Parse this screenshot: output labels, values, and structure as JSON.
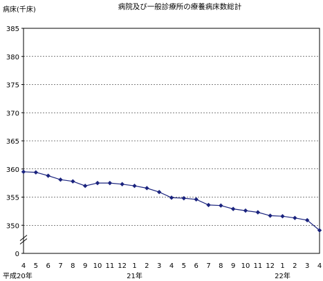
{
  "chart_data": {
    "type": "line",
    "title": "病院及び一般診療所の療養病床数総計",
    "ylabel": "病床(千床)",
    "xlabel": "",
    "ylim": [
      345,
      385
    ],
    "yticks": [
      "0",
      "350",
      "355",
      "360",
      "365",
      "370",
      "375",
      "380",
      "385"
    ],
    "axis_break": "y-axis between 0 and 350",
    "grid": true,
    "legend": "none",
    "categories": [
      "4",
      "5",
      "6",
      "7",
      "8",
      "9",
      "10",
      "11",
      "12",
      "1",
      "2",
      "3",
      "4",
      "5",
      "6",
      "7",
      "8",
      "9",
      "10",
      "11",
      "12",
      "1",
      "2",
      "3",
      "4"
    ],
    "year_labels": [
      {
        "label": "平成20年",
        "category_index": 0
      },
      {
        "label": "21年",
        "category_index": 9
      },
      {
        "label": "22年",
        "category_index": 21
      }
    ],
    "series": [
      {
        "values": [
          359.5,
          359.4,
          358.8,
          358.1,
          357.8,
          357.0,
          357.5,
          357.5,
          357.3,
          357.0,
          356.6,
          355.9,
          354.9,
          354.8,
          354.6,
          353.6,
          353.5,
          352.9,
          352.6,
          352.3,
          351.7,
          351.6,
          351.3,
          350.9,
          349.1
        ],
        "color": "#1a237e"
      }
    ]
  }
}
